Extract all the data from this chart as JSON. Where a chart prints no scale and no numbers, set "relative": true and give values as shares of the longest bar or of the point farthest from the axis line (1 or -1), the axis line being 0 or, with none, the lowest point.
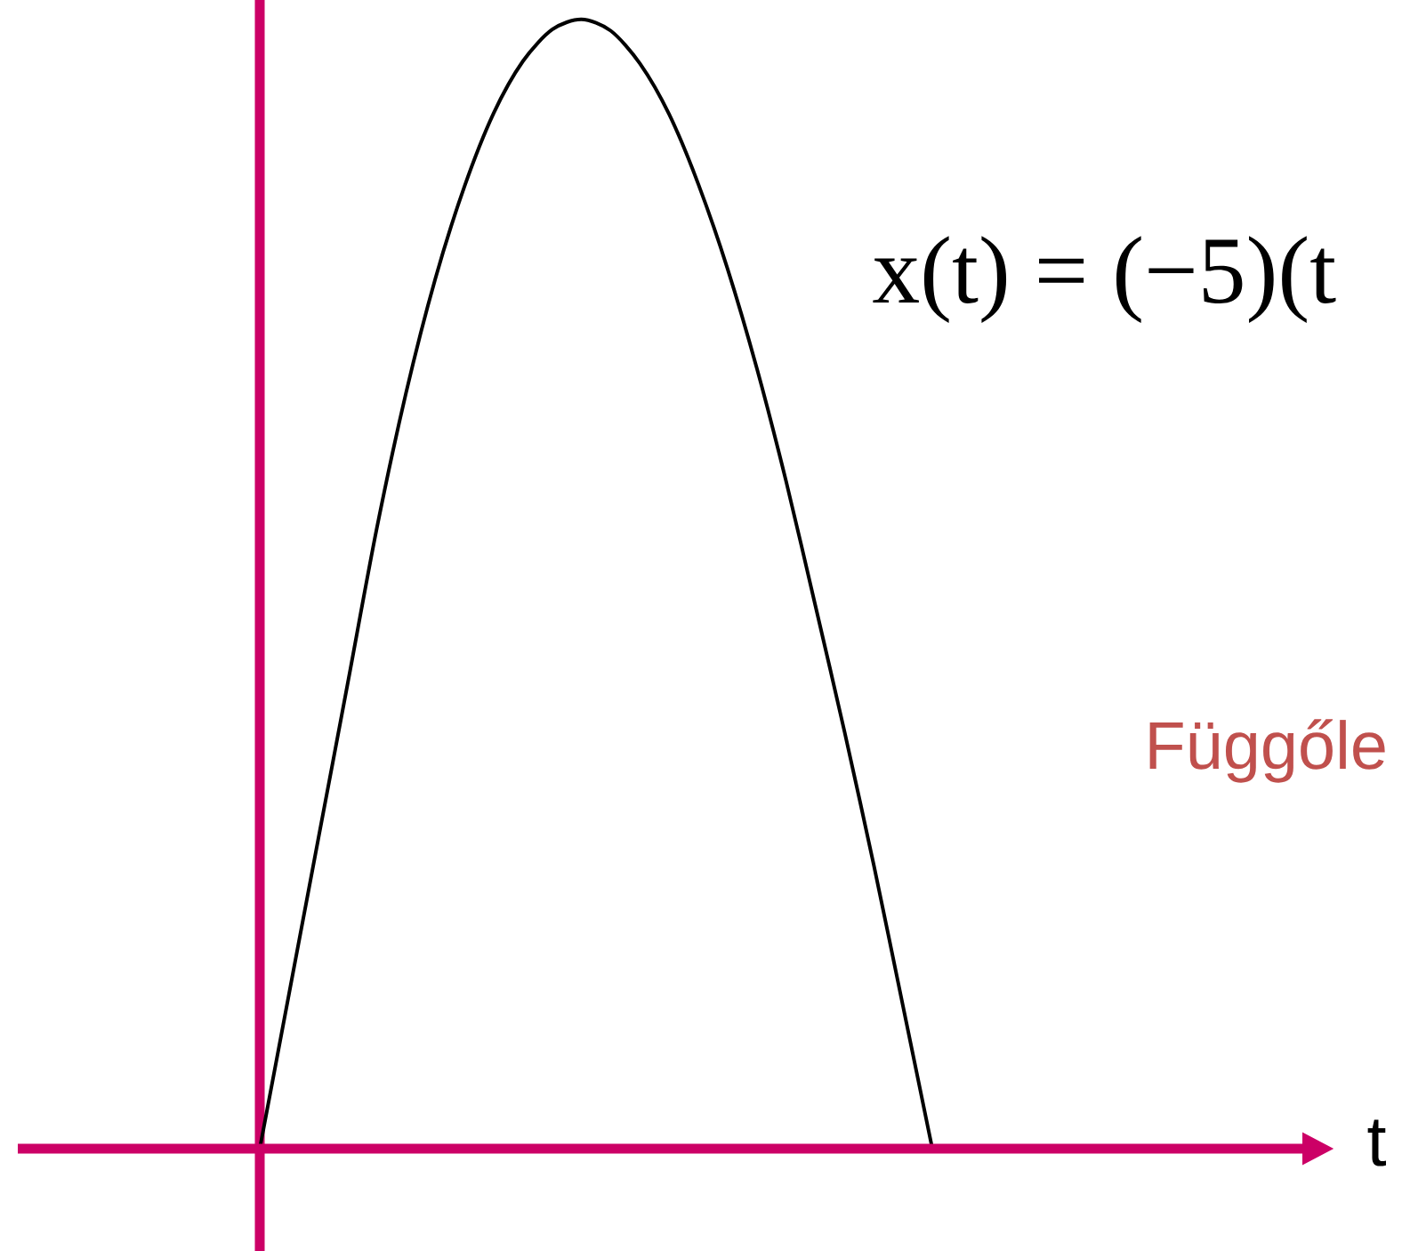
{
  "chart_data": {
    "type": "line",
    "relative": true,
    "categories": [
      null,
      null,
      null,
      null,
      null,
      null,
      null,
      null,
      null,
      null,
      null,
      null,
      null,
      null,
      null,
      null,
      null,
      null,
      null,
      null,
      null,
      null,
      null,
      null
    ],
    "series": [
      {
        "color": "#000000",
        "values": [
          0,
          0.137,
          0.274,
          0.411,
          0.549,
          0.669,
          0.77,
          0.852,
          0.917,
          0.963,
          0.991,
          1,
          0.99,
          0.961,
          0.916,
          0.854,
          0.779,
          0.691,
          0.591,
          0.481,
          0.369,
          0.251,
          0.126,
          0
        ]
      }
    ],
    "annotations": [
      "x(t) = (−5)(t",
      "Függőle",
      "t"
    ]
  }
}
